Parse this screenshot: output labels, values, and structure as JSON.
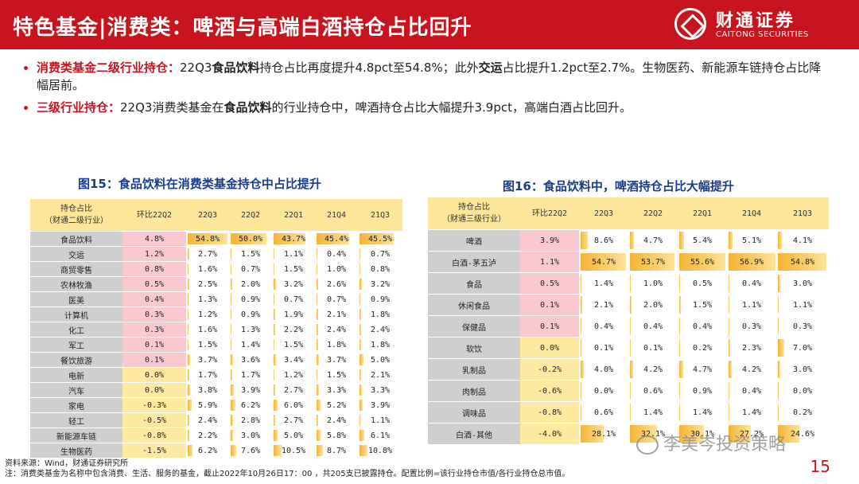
{
  "header": {
    "title": "特色基金|消费类：啤酒与高端白酒持仓占比回升",
    "logo_cn": "财通证券",
    "logo_en": "CAITONG SECURITIES"
  },
  "bullets": [
    {
      "label": "消费类基金二级行业持仓：",
      "t1": "22Q3",
      "b1": "食品饮料",
      "t2": "持仓占比再度提升4.8pct至54.8%；此外",
      "b2": "交运",
      "t3": "占比提升1.2pct至2.7%。生物医药、新能源车链持仓占比降幅居前。"
    },
    {
      "label": "三级行业持仓：",
      "t1": "22Q3消费类基金在",
      "b1": "食品饮料",
      "t2": "的行业持仓中，啤酒持仓占比大幅提升3.9pct，高端白酒占比回升。"
    }
  ],
  "fig15": {
    "title": "图15：食品饮料在消费类基金持仓中占比提升",
    "headers": [
      "持仓占比\n（财通二级行业）",
      "环比22Q2",
      "22Q3",
      "22Q2",
      "22Q1",
      "21Q4",
      "21Q3"
    ],
    "rows": [
      {
        "name": "食品饮料",
        "chg": "4.8%",
        "pos": true,
        "vals": [
          [
            "54.8%",
            54.8
          ],
          [
            "50.0%",
            50.0
          ],
          [
            "43.7%",
            43.7
          ],
          [
            "45.4%",
            45.4
          ],
          [
            "45.5%",
            45.5
          ]
        ]
      },
      {
        "name": "交运",
        "chg": "1.2%",
        "pos": true,
        "vals": [
          [
            "2.7%",
            2.7
          ],
          [
            "1.5%",
            1.5
          ],
          [
            "1.1%",
            1.1
          ],
          [
            "0.4%",
            0.4
          ],
          [
            "0.7%",
            0.7
          ]
        ]
      },
      {
        "name": "商贸零售",
        "chg": "0.8%",
        "pos": true,
        "vals": [
          [
            "1.6%",
            1.6
          ],
          [
            "0.7%",
            0.7
          ],
          [
            "1.5%",
            1.5
          ],
          [
            "1.0%",
            1.0
          ],
          [
            "0.8%",
            0.8
          ]
        ]
      },
      {
        "name": "农林牧渔",
        "chg": "0.5%",
        "pos": true,
        "vals": [
          [
            "2.5%",
            2.5
          ],
          [
            "2.0%",
            2.0
          ],
          [
            "3.2%",
            3.2
          ],
          [
            "2.6%",
            2.6
          ],
          [
            "3.2%",
            3.2
          ]
        ]
      },
      {
        "name": "医美",
        "chg": "0.4%",
        "pos": true,
        "vals": [
          [
            "1.3%",
            1.3
          ],
          [
            "0.9%",
            0.9
          ],
          [
            "0.7%",
            0.7
          ],
          [
            "0.7%",
            0.7
          ],
          [
            "0.9%",
            0.9
          ]
        ]
      },
      {
        "name": "计算机",
        "chg": "0.3%",
        "pos": true,
        "vals": [
          [
            "1.2%",
            1.2
          ],
          [
            "0.9%",
            0.9
          ],
          [
            "1.9%",
            1.9
          ],
          [
            "2.1%",
            2.1
          ],
          [
            "1.8%",
            1.8
          ]
        ]
      },
      {
        "name": "化工",
        "chg": "0.3%",
        "pos": true,
        "vals": [
          [
            "1.6%",
            1.6
          ],
          [
            "1.3%",
            1.3
          ],
          [
            "2.2%",
            2.2
          ],
          [
            "2.4%",
            2.4
          ],
          [
            "2.4%",
            2.4
          ]
        ]
      },
      {
        "name": "军工",
        "chg": "0.1%",
        "pos": true,
        "vals": [
          [
            "1.5%",
            1.5
          ],
          [
            "1.4%",
            1.4
          ],
          [
            "1.5%",
            1.5
          ],
          [
            "1.8%",
            1.8
          ],
          [
            "1.8%",
            1.8
          ]
        ]
      },
      {
        "name": "餐饮旅游",
        "chg": "0.1%",
        "pos": true,
        "vals": [
          [
            "3.7%",
            3.7
          ],
          [
            "3.6%",
            3.6
          ],
          [
            "3.4%",
            3.4
          ],
          [
            "3.7%",
            3.7
          ],
          [
            "5.0%",
            5.0
          ]
        ]
      },
      {
        "name": "电新",
        "chg": "0.0%",
        "pos": false,
        "vals": [
          [
            "1.7%",
            1.7
          ],
          [
            "1.7%",
            1.7
          ],
          [
            "1.2%",
            1.2
          ],
          [
            "1.5%",
            1.5
          ],
          [
            "2.1%",
            2.1
          ]
        ]
      },
      {
        "name": "汽车",
        "chg": "0.0%",
        "pos": false,
        "vals": [
          [
            "3.8%",
            3.8
          ],
          [
            "3.9%",
            3.9
          ],
          [
            "2.7%",
            2.7
          ],
          [
            "3.3%",
            3.3
          ],
          [
            "3.3%",
            3.3
          ]
        ]
      },
      {
        "name": "家电",
        "chg": "-0.3%",
        "pos": false,
        "vals": [
          [
            "5.9%",
            5.9
          ],
          [
            "6.2%",
            6.2
          ],
          [
            "6.0%",
            6.0
          ],
          [
            "5.2%",
            5.2
          ],
          [
            "3.9%",
            3.9
          ]
        ]
      },
      {
        "name": "轻工",
        "chg": "-0.5%",
        "pos": false,
        "vals": [
          [
            "2.4%",
            2.4
          ],
          [
            "2.8%",
            2.8
          ],
          [
            "2.7%",
            2.7
          ],
          [
            "2.4%",
            2.4
          ],
          [
            "1.1%",
            1.1
          ]
        ]
      },
      {
        "name": "新能源车链",
        "chg": "-0.8%",
        "pos": false,
        "vals": [
          [
            "2.2%",
            2.2
          ],
          [
            "3.0%",
            3.0
          ],
          [
            "5.0%",
            5.0
          ],
          [
            "5.8%",
            5.8
          ],
          [
            "6.1%",
            6.1
          ]
        ]
      },
      {
        "name": "生物医药",
        "chg": "-1.5%",
        "pos": false,
        "vals": [
          [
            "6.2%",
            6.2
          ],
          [
            "7.6%",
            7.6
          ],
          [
            "10.5%",
            10.5
          ],
          [
            "8.7%",
            8.7
          ],
          [
            "10.8%",
            10.8
          ]
        ]
      }
    ]
  },
  "fig16": {
    "title": "图16：食品饮料中，啤酒持仓占比大幅提升",
    "headers": [
      "持仓占比\n（财通三级行业）",
      "环比22Q2",
      "22Q3",
      "22Q2",
      "22Q1",
      "21Q4",
      "21Q3"
    ],
    "rows": [
      {
        "name": "啤酒",
        "chg": "3.9%",
        "pos": true,
        "vals": [
          [
            "8.6%",
            8.6
          ],
          [
            "4.7%",
            4.7
          ],
          [
            "5.4%",
            5.4
          ],
          [
            "5.1%",
            5.1
          ],
          [
            "4.1%",
            4.1
          ]
        ]
      },
      {
        "name": "白酒-茅五泸",
        "chg": "1.1%",
        "pos": true,
        "vals": [
          [
            "54.7%",
            54.7
          ],
          [
            "53.7%",
            53.7
          ],
          [
            "55.6%",
            55.6
          ],
          [
            "56.9%",
            56.9
          ],
          [
            "54.8%",
            54.8
          ]
        ]
      },
      {
        "name": "食品",
        "chg": "0.5%",
        "pos": true,
        "vals": [
          [
            "1.4%",
            1.4
          ],
          [
            "1.0%",
            1.0
          ],
          [
            "0.5%",
            0.5
          ],
          [
            "0.4%",
            0.4
          ],
          [
            "3.0%",
            3.0
          ]
        ]
      },
      {
        "name": "休闲食品",
        "chg": "0.1%",
        "pos": true,
        "vals": [
          [
            "2.1%",
            2.1
          ],
          [
            "2.0%",
            2.0
          ],
          [
            "1.5%",
            1.5
          ],
          [
            "1.1%",
            1.1
          ],
          [
            "1.1%",
            1.1
          ]
        ]
      },
      {
        "name": "保健品",
        "chg": "0.1%",
        "pos": true,
        "vals": [
          [
            "0.4%",
            0.4
          ],
          [
            "0.4%",
            0.4
          ],
          [
            "0.4%",
            0.4
          ],
          [
            "0.3%",
            0.3
          ],
          [
            "0.3%",
            0.3
          ]
        ]
      },
      {
        "name": "软饮",
        "chg": "0.0%",
        "pos": false,
        "vals": [
          [
            "0.1%",
            0.1
          ],
          [
            "0.1%",
            0.1
          ],
          [
            "0.2%",
            0.2
          ],
          [
            "2.3%",
            2.3
          ],
          [
            "7.0%",
            7.0
          ]
        ]
      },
      {
        "name": "乳制品",
        "chg": "-0.2%",
        "pos": false,
        "vals": [
          [
            "4.0%",
            4.0
          ],
          [
            "4.2%",
            4.2
          ],
          [
            "4.7%",
            4.7
          ],
          [
            "4.2%",
            4.2
          ],
          [
            "3.0%",
            3.0
          ]
        ]
      },
      {
        "name": "肉制品",
        "chg": "-0.6%",
        "pos": false,
        "vals": [
          [
            "0.0%",
            0.0
          ],
          [
            "0.6%",
            0.6
          ],
          [
            "0.9%",
            0.9
          ],
          [
            "0.4%",
            0.4
          ],
          [
            "0.0%",
            0.0
          ]
        ]
      },
      {
        "name": "调味品",
        "chg": "-0.8%",
        "pos": false,
        "vals": [
          [
            "0.6%",
            0.6
          ],
          [
            "1.4%",
            1.4
          ],
          [
            "1.4%",
            1.4
          ],
          [
            "1.4%",
            1.4
          ],
          [
            "0.2%",
            0.2
          ]
        ]
      },
      {
        "name": "白酒-其他",
        "chg": "-4.0%",
        "pos": false,
        "vals": [
          [
            "28.1%",
            28.1
          ],
          [
            "32.1%",
            32.1
          ],
          [
            "30.1%",
            30.1
          ],
          [
            "27.2%",
            27.2
          ],
          [
            "24.6%",
            24.6
          ]
        ]
      }
    ]
  },
  "footer": {
    "source": "资料来源：Wind，财通证券研究所",
    "note": "注：消费类基金为名称中包含消费、生活、服务的基金，截止2022年10月26日17：00 ，共205支已披露持仓。配置比例=该行业持仓市值/各行业持仓总市值。",
    "page": "15",
    "watermark": "李美岑投资策略"
  },
  "colors": {
    "brand": "#c8141f",
    "figtitle": "#1a3c8f",
    "header": "#fde59a",
    "pos": "#f9c9cf",
    "neg": "#fdeaa0",
    "label": "#cfcfcf"
  }
}
